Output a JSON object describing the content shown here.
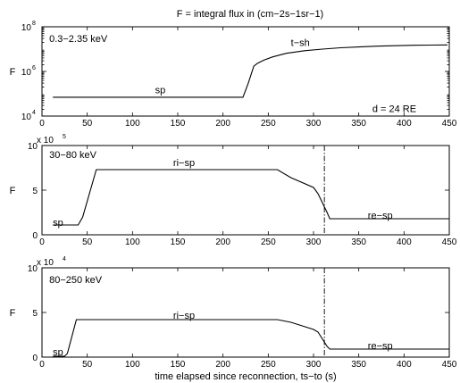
{
  "figure_title": "F = integral flux in (cm−2s−1sr−1)",
  "xlabel": "time elapsed since reconnection, ts−to (s)",
  "chart_data": [
    {
      "type": "line",
      "panel": "top",
      "ylabel": "F",
      "yscale": "log",
      "ylim": [
        10000,
        100000000
      ],
      "xlim": [
        0,
        450
      ],
      "x_ticks": [
        "0",
        "50",
        "100",
        "150",
        "200",
        "250",
        "300",
        "350",
        "400",
        "450"
      ],
      "y_ticks": [
        {
          "value": 10000,
          "base": "10",
          "exp": "4"
        },
        {
          "value": 1000000,
          "base": "10",
          "exp": "6"
        },
        {
          "value": 100000000,
          "base": "10",
          "exp": "8"
        }
      ],
      "annotations": [
        {
          "text": "0.3−2.35 keV",
          "x": 8,
          "y": 30000000
        },
        {
          "text": "sp",
          "x": 125,
          "y": 150000
        },
        {
          "text": "t−sh",
          "x": 275,
          "y": 20000000
        },
        {
          "text": "d = 24 RE",
          "x": 365,
          "y": 22000
        }
      ],
      "series": [
        {
          "x": [
            12,
            222,
            228,
            234,
            238,
            245,
            255,
            270,
            290,
            310,
            330,
            350,
            370,
            390,
            410,
            430,
            448
          ],
          "y": [
            70000,
            70000,
            300000,
            1700000,
            2300000,
            3200000,
            4500000,
            6500000,
            8500000,
            10000000,
            11500000,
            12500000,
            13500000,
            14200000,
            14800000,
            15200000,
            15400000
          ]
        }
      ]
    },
    {
      "type": "line",
      "panel": "middle",
      "ylabel": "F",
      "ylim": [
        0,
        10
      ],
      "y_multiplier": {
        "base": "x 10",
        "exp": "5"
      },
      "xlim": [
        0,
        450
      ],
      "x_ticks": [
        "0",
        "50",
        "100",
        "150",
        "200",
        "250",
        "300",
        "350",
        "400",
        "450"
      ],
      "y_ticks": [
        "0",
        "5",
        "10"
      ],
      "annotations": [
        {
          "text": "30−80 keV",
          "x": 8,
          "y": 9.0
        },
        {
          "text": "ri−sp",
          "x": 145,
          "y": 8.1
        },
        {
          "text": "sp",
          "x": 12,
          "y": 1.4
        },
        {
          "text": "re−sp",
          "x": 360,
          "y": 2.2
        }
      ],
      "marker_x": 312,
      "series": [
        {
          "x": [
            12,
            40,
            45,
            60,
            260,
            275,
            300,
            305,
            315,
            318,
            450
          ],
          "y": [
            1.1,
            1.1,
            2.0,
            7.3,
            7.3,
            6.4,
            5.3,
            4.6,
            2.5,
            1.8,
            1.8
          ]
        }
      ]
    },
    {
      "type": "line",
      "panel": "bottom",
      "ylabel": "F",
      "ylim": [
        0,
        10
      ],
      "y_multiplier": {
        "base": "x 10",
        "exp": "4"
      },
      "xlim": [
        0,
        450
      ],
      "x_ticks": [
        "0",
        "50",
        "100",
        "150",
        "200",
        "250",
        "300",
        "350",
        "400",
        "450"
      ],
      "y_ticks": [
        "0",
        "5",
        "10"
      ],
      "annotations": [
        {
          "text": "80−250 keV",
          "x": 8,
          "y": 8.7
        },
        {
          "text": "ri−sp",
          "x": 145,
          "y": 4.7
        },
        {
          "text": "sp",
          "x": 12,
          "y": 0.6
        },
        {
          "text": "re−sp",
          "x": 360,
          "y": 1.3
        }
      ],
      "marker_x": 312,
      "series": [
        {
          "x": [
            12,
            25,
            28,
            38,
            260,
            275,
            300,
            305,
            315,
            318,
            450
          ],
          "y": [
            0.1,
            0.1,
            0.4,
            4.2,
            4.2,
            3.9,
            3.1,
            2.8,
            1.2,
            0.9,
            0.9
          ]
        }
      ]
    }
  ]
}
